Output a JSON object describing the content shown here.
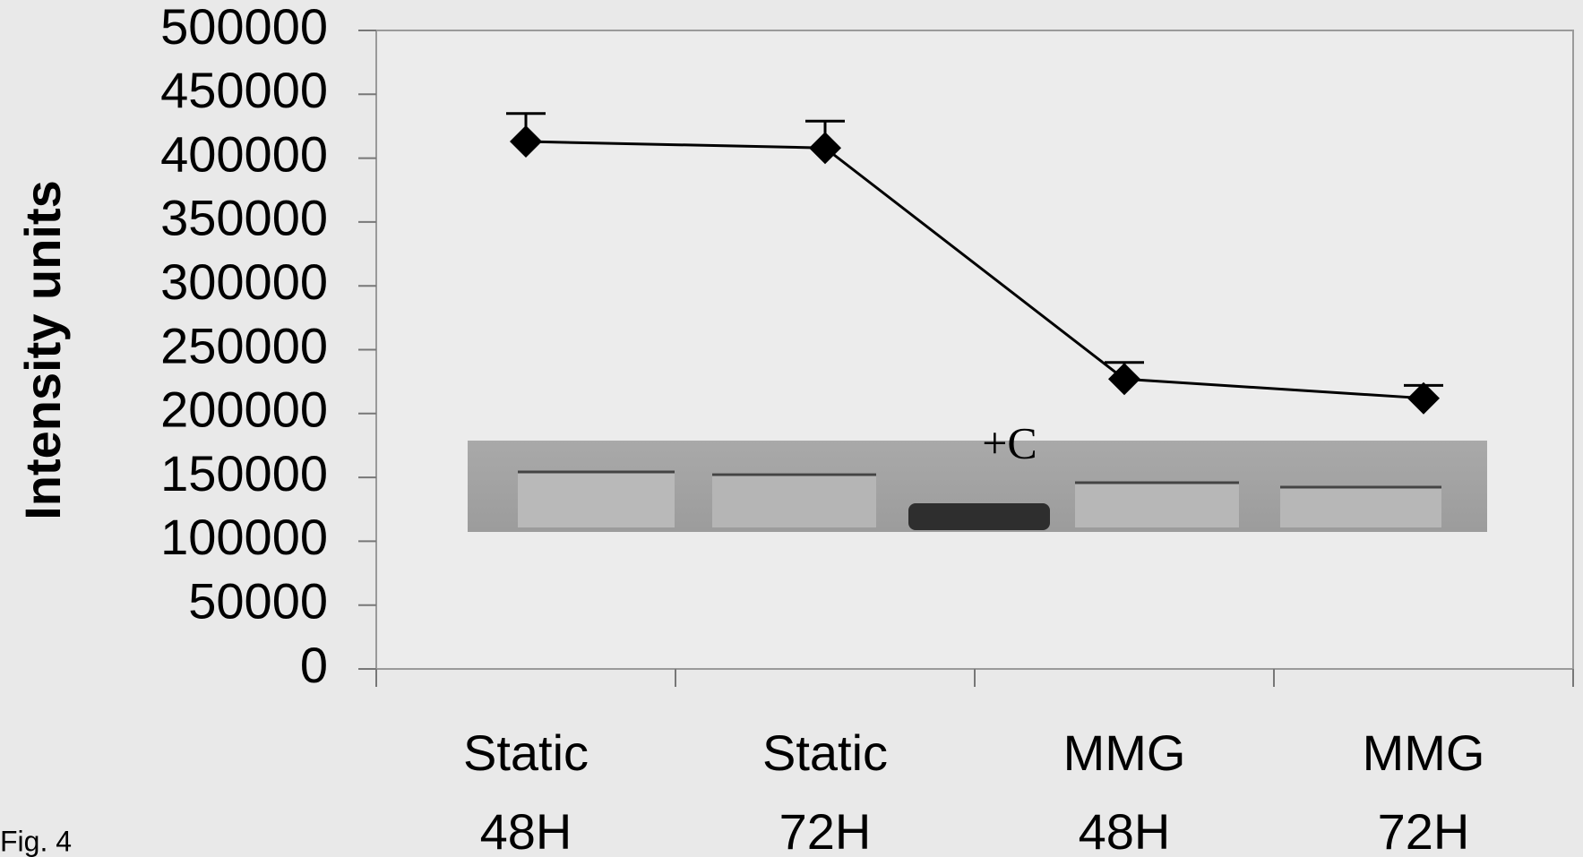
{
  "chart_data": {
    "type": "line",
    "y_label": "Intensity units",
    "categories": [
      [
        "Static",
        "48H"
      ],
      [
        "Static",
        "72H"
      ],
      [
        "MMG",
        "48H"
      ],
      [
        "MMG",
        "72H"
      ]
    ],
    "values": [
      413000,
      408000,
      227000,
      212000
    ],
    "errors": [
      22000,
      21000,
      13000,
      10000
    ],
    "color": "#000000",
    "ylim": [
      0,
      500000
    ],
    "yticks": [
      0,
      50000,
      100000,
      150000,
      200000,
      250000,
      300000,
      350000,
      400000,
      450000,
      500000
    ],
    "inset_label": "+C",
    "figure_label": "Fig. 4"
  }
}
